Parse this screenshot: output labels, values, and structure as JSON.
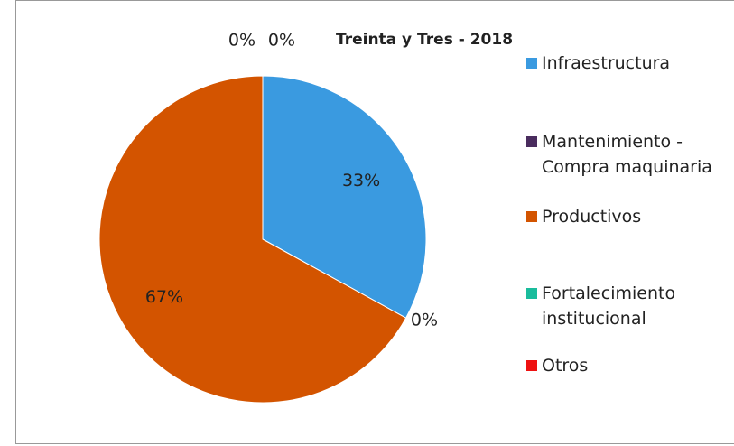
{
  "chart_data": {
    "type": "pie",
    "title": "Treinta y Tres - 2018",
    "categories": [
      "Infraestructura",
      "Mantenimiento - Compra maquinaria",
      "Productivos",
      "Fortalecimiento institucional",
      "Otros"
    ],
    "values": [
      33,
      0,
      67,
      0,
      0
    ],
    "value_labels": [
      "33%",
      "0%",
      "67%",
      "0%",
      "0%"
    ],
    "colors": [
      "#3a9ae0",
      "#4a2c5e",
      "#d35400",
      "#1abc9c",
      "#ee1111"
    ]
  }
}
